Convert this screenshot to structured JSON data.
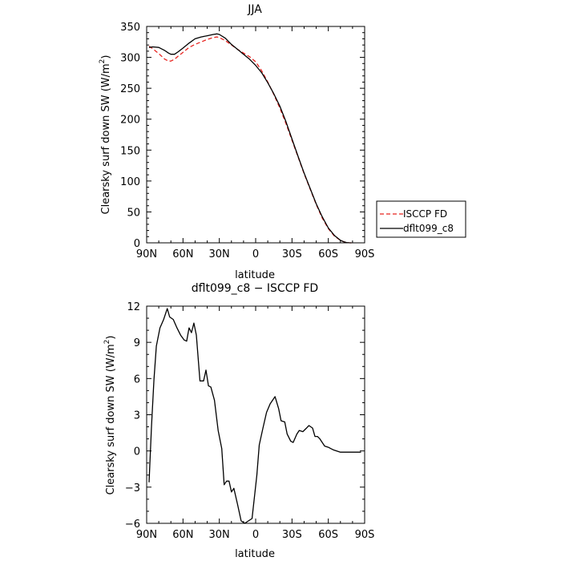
{
  "chart_data": [
    {
      "type": "line",
      "title": "JJA",
      "xlabel": "latitude",
      "ylabel_main": "Clearsky surf down SW (W/m",
      "ylabel_sup": "2",
      "ylabel_close": ")",
      "xlim": [
        90,
        -90
      ],
      "ylim": [
        0,
        350
      ],
      "xticks": [
        90,
        60,
        30,
        0,
        -30,
        -60,
        -90
      ],
      "xtick_labels": [
        "90N",
        "60N",
        "30N",
        "0",
        "30S",
        "60S",
        "90S"
      ],
      "yticks": [
        0,
        50,
        100,
        150,
        200,
        250,
        300,
        350
      ],
      "ytick_labels": [
        "0",
        "50",
        "100",
        "150",
        "200",
        "250",
        "300",
        "350"
      ],
      "grid": false,
      "legend_position": "right",
      "series": [
        {
          "name": "ISCCP FD",
          "color": "#e8231f",
          "dash": "dashed",
          "x": [
            88,
            85,
            80,
            75,
            72,
            70,
            67,
            64,
            60,
            55,
            50,
            45,
            40,
            35,
            32,
            30,
            25,
            20,
            15,
            10,
            5,
            0,
            -5,
            -10,
            -15,
            -20,
            -25,
            -30,
            -35,
            -40,
            -45,
            -50,
            -55,
            -60,
            -65,
            -70,
            -73,
            -75,
            -77,
            -79
          ],
          "y": [
            318,
            314,
            306,
            297,
            294,
            294,
            297,
            302,
            308,
            316,
            321,
            325,
            329,
            332,
            333,
            332,
            327,
            320,
            313,
            307,
            301,
            293,
            278,
            260,
            240,
            218,
            193,
            166,
            139,
            112,
            87,
            62,
            40,
            23,
            11,
            4,
            1.5,
            0.5,
            0.1,
            0
          ]
        },
        {
          "name": "dflt099_c8",
          "color": "#000000",
          "dash": "solid",
          "x": [
            88,
            85,
            80,
            75,
            72,
            70,
            67,
            64,
            60,
            55,
            50,
            45,
            40,
            35,
            32,
            30,
            25,
            20,
            15,
            10,
            5,
            0,
            -5,
            -10,
            -15,
            -20,
            -25,
            -30,
            -35,
            -40,
            -45,
            -50,
            -55,
            -60,
            -65,
            -70,
            -73,
            -75,
            -77,
            -79
          ],
          "y": [
            316,
            317,
            316,
            311,
            307,
            305,
            305,
            309,
            315,
            323,
            330,
            333,
            335,
            337,
            338,
            337,
            331,
            321,
            313,
            305,
            297,
            287,
            275,
            259,
            241,
            221,
            196,
            168,
            140,
            113,
            88,
            63,
            42,
            24,
            12,
            4,
            1.5,
            0.5,
            0.1,
            0
          ]
        }
      ]
    },
    {
      "type": "line",
      "title": "dflt099_c8 − ISCCP FD",
      "xlabel": "latitude",
      "ylabel_main": "Clearsky surf down SW (W/m",
      "ylabel_sup": "2",
      "ylabel_close": ")",
      "xlim": [
        90,
        -90
      ],
      "ylim": [
        -6,
        12
      ],
      "xticks": [
        90,
        60,
        30,
        0,
        -30,
        -60,
        -90
      ],
      "xtick_labels": [
        "90N",
        "60N",
        "30N",
        "0",
        "30S",
        "60S",
        "90S"
      ],
      "yticks": [
        -6,
        -3,
        0,
        3,
        6,
        9,
        12
      ],
      "ytick_labels": [
        "−6",
        "−3",
        "0",
        "3",
        "6",
        "9",
        "12"
      ],
      "grid": false,
      "series": [
        {
          "color": "#000000",
          "dash": "solid",
          "x": [
            88,
            86,
            84,
            82,
            79,
            76,
            73,
            71,
            68,
            65,
            62,
            59,
            57,
            55,
            53,
            51,
            49,
            46,
            43,
            41,
            39,
            37,
            34,
            31,
            28,
            26,
            24,
            22,
            20,
            18,
            15,
            12,
            9,
            6,
            3,
            1,
            -1,
            -3,
            -6,
            -9,
            -12,
            -16,
            -19,
            -21,
            -24,
            -26,
            -29,
            -31,
            -34,
            -36,
            -39,
            -42,
            -44,
            -47,
            -49,
            -51,
            -53,
            -55,
            -57,
            -60,
            -62,
            -64,
            -67,
            -70,
            -73,
            -76,
            -79,
            -82,
            -85,
            -87
          ],
          "y": [
            -2.6,
            2.0,
            5.9,
            8.7,
            10.2,
            10.9,
            11.8,
            11.1,
            10.9,
            10.2,
            9.6,
            9.2,
            9.1,
            10.2,
            9.8,
            10.6,
            9.6,
            5.8,
            5.8,
            6.7,
            5.4,
            5.3,
            4.2,
            1.7,
            0.2,
            -2.8,
            -2.5,
            -2.5,
            -3.4,
            -3.1,
            -4.4,
            -5.8,
            -6.0,
            -5.8,
            -5.6,
            -3.8,
            -2.0,
            0.5,
            1.9,
            3.2,
            3.9,
            4.5,
            3.5,
            2.5,
            2.4,
            1.4,
            0.8,
            0.7,
            1.4,
            1.7,
            1.6,
            1.9,
            2.1,
            1.9,
            1.2,
            1.2,
            1.0,
            0.7,
            0.4,
            0.3,
            0.2,
            0.1,
            0.0,
            -0.1,
            -0.1,
            -0.1,
            -0.1,
            -0.1,
            -0.1,
            -0.1
          ]
        }
      ]
    }
  ]
}
